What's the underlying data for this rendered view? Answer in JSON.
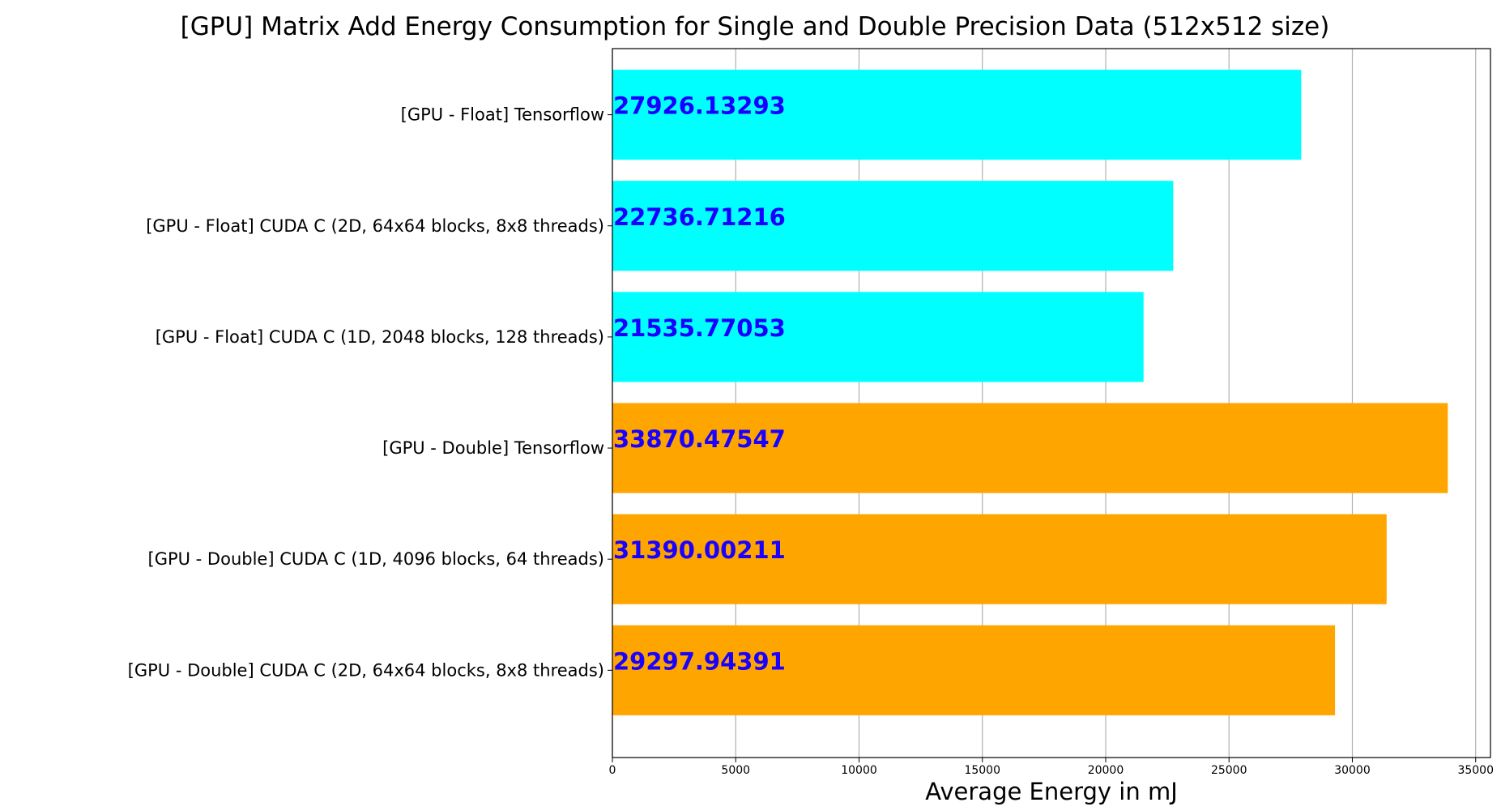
{
  "chart_data": {
    "type": "bar",
    "orientation": "horizontal",
    "title": "[GPU] Matrix Add Energy Consumption for Single and Double Precision Data (512x512 size)",
    "xlabel": "Average Energy in mJ",
    "ylabel": "",
    "xlim": [
      0,
      35600
    ],
    "xticks": [
      0,
      5000,
      10000,
      15000,
      20000,
      25000,
      30000,
      35000
    ],
    "grid": "vertical",
    "categories": [
      "[GPU - Float] Tensorflow",
      "[GPU - Float] CUDA C (2D, 64x64 blocks, 8x8 threads)",
      "[GPU - Float] CUDA C (1D, 2048 blocks, 128 threads)",
      "[GPU - Double] Tensorflow",
      "[GPU - Double] CUDA C (1D, 4096 blocks, 64 threads)",
      "[GPU - Double] CUDA C (2D, 64x64 blocks, 8x8 threads)"
    ],
    "values": [
      27926.13293,
      22736.71216,
      21535.77053,
      33870.47547,
      31390.00211,
      29297.94391
    ],
    "data_labels": [
      "27926.13293",
      "22736.71216",
      "21535.77053",
      "33870.47547",
      "31390.00211",
      "29297.94391"
    ],
    "bar_colors": [
      "#00ffff",
      "#00ffff",
      "#00ffff",
      "#ffa500",
      "#ffa500",
      "#ffa500"
    ],
    "label_color": "#1a00ff"
  }
}
